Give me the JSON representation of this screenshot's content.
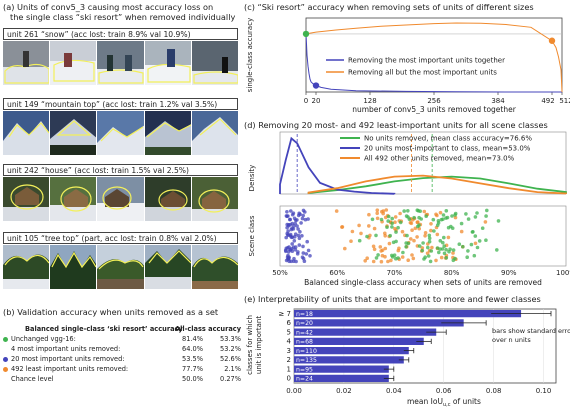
{
  "panel_a": {
    "caption_line1": "(a) Units of conv5_3 causing most accuracy loss on",
    "caption_line2": "the single class “ski resort” when removed individually",
    "units": [
      {
        "title": "unit 261 “snow” (acc lost: train 8.9% val 10.9%)"
      },
      {
        "title": "unit 149 “mountain top” (acc lost: train 1.2% val 3.5%)"
      },
      {
        "title": "unit 242 “house” (acc lost: train 1.5% val 2.5%)"
      },
      {
        "title": "unit 105 “tree top” (part, acc lost: train 0.8% val 2.0%)"
      }
    ]
  },
  "panel_b": {
    "caption": "(b) Validation accuracy when units removed as a set",
    "header_col1": "Balanced single-class ‘ski resort’ accuracy",
    "header_col2": "All-class accuracy",
    "rows": [
      {
        "label": "Unchanged vgg-16:",
        "ski": "81.4%",
        "all": "53.3%",
        "color": "#3fb34f"
      },
      {
        "label": "4 most important units removed:",
        "ski": "64.0%",
        "all": "53.2%",
        "color": ""
      },
      {
        "label": "20 most important units removed:",
        "ski": "53.5%",
        "all": "52.6%",
        "color": "#4444bb"
      },
      {
        "label": "492 least important units removed:",
        "ski": "77.7%",
        "all": "2.1%",
        "color": "#f08a2e"
      },
      {
        "label": "Chance level",
        "ski": "50.0%",
        "all": "0.27%",
        "color": ""
      }
    ]
  },
  "panel_c": {
    "caption": "(c) “Ski resort” accuracy when removing sets of units of different sizes",
    "ylabel": "single-class accuracy",
    "xlabel": "number of conv5_3 units removed together",
    "legend": [
      "Removing the most important units together",
      "Removing all but the most important units"
    ],
    "colors": {
      "most": "#4444bb",
      "allbut": "#f08a2e",
      "start": "#3fb34f"
    }
  },
  "panel_d": {
    "caption": "(d) Removing 20 most- and 492 least-important units for all scene classes",
    "density_label": "Density",
    "scene_label": "Scene class",
    "xlabel": "Balanced single-class accuracy when sets of units are removed",
    "legend": [
      {
        "text": "No units removed, mean class accuracy=76.6%",
        "color": "#3fb34f"
      },
      {
        "text": "20 units most-important to class, mean=53.0%",
        "color": "#4444bb"
      },
      {
        "text": "All 492 other units removed, mean=73.0%",
        "color": "#f08a2e"
      }
    ]
  },
  "panel_e": {
    "caption": "(e) Interpretability of units that are important to more and fewer classes",
    "ylabel_line1": "classes for which",
    "ylabel_line2": "unit is important",
    "xlabel": "mean IoU",
    "xlabel_sub": "u,c",
    "xlabel_tail": " of units",
    "note_line1": "bars show standard error",
    "note_line2": "over n units"
  },
  "chart_data": [
    {
      "type": "line",
      "title": "“Ski resort” accuracy when removing sets of units of different sizes",
      "xlabel": "number of conv5_3 units removed together",
      "ylabel": "single-class accuracy",
      "xlim": [
        0,
        512
      ],
      "xticks": [
        "0",
        "20",
        "128",
        "256",
        "384",
        "492",
        "512"
      ],
      "xtick_values": [
        0,
        20,
        128,
        256,
        384,
        492,
        512
      ],
      "ylim": [
        0.5,
        0.9
      ],
      "series": [
        {
          "name": "Removing the most important units together",
          "x": [
            0,
            1,
            2,
            4,
            6,
            8,
            10,
            14,
            20,
            30,
            50,
            100,
            200,
            300,
            400,
            492,
            512
          ],
          "y": [
            0.814,
            0.76,
            0.7,
            0.64,
            0.6,
            0.57,
            0.555,
            0.545,
            0.535,
            0.525,
            0.515,
            0.507,
            0.503,
            0.501,
            0.5,
            0.5,
            0.5
          ]
        },
        {
          "name": "Removing all but the most important units",
          "x": [
            0,
            20,
            60,
            100,
            150,
            200,
            256,
            300,
            350,
            400,
            450,
            492,
            500,
            505,
            510,
            512
          ],
          "y": [
            0.814,
            0.824,
            0.835,
            0.845,
            0.855,
            0.862,
            0.87,
            0.873,
            0.872,
            0.865,
            0.85,
            0.777,
            0.74,
            0.69,
            0.62,
            0.5
          ]
        }
      ]
    },
    {
      "type": "area",
      "title": "Removing 20 most- and 492 least-important units for all scene classes",
      "xlabel": "Balanced single-class accuracy when sets of units are removed",
      "xticks": [
        "50%",
        "60%",
        "70%",
        "80%",
        "90%",
        "100%"
      ],
      "xlim": [
        0.5,
        1.0
      ],
      "series": [
        {
          "name": "No units removed, mean class accuracy=76.6%",
          "mean": 0.766,
          "x": [
            0.55,
            0.6,
            0.65,
            0.7,
            0.75,
            0.8,
            0.85,
            0.9,
            0.95,
            1.0
          ],
          "density": [
            0.2,
            0.8,
            1.6,
            2.6,
            3.3,
            3.6,
            3.2,
            2.2,
            1.1,
            0.4
          ]
        },
        {
          "name": "20 units most-important to class, mean=53.0%",
          "mean": 0.53,
          "x": [
            0.5,
            0.51,
            0.52,
            0.53,
            0.55,
            0.57,
            0.6,
            0.63,
            0.66,
            0.7
          ],
          "density": [
            2.0,
            7.0,
            11.5,
            10.5,
            5.5,
            2.3,
            0.9,
            0.5,
            0.2,
            0.05
          ]
        },
        {
          "name": "All 492 other units removed, mean=73.0%",
          "mean": 0.73,
          "x": [
            0.55,
            0.6,
            0.65,
            0.7,
            0.75,
            0.8,
            0.85,
            0.9,
            0.95,
            1.0
          ],
          "density": [
            0.3,
            1.2,
            2.6,
            3.6,
            3.8,
            3.2,
            2.2,
            1.2,
            0.4,
            0.1
          ]
        }
      ]
    },
    {
      "type": "bar",
      "title": "Interpretability of units that are important to more and fewer classes",
      "xlabel": "mean IoU u,c of units",
      "ylabel": "classes for which unit is important",
      "categories": [
        "≥ 7",
        "6",
        "5",
        "4",
        "3",
        "2",
        "1",
        "0"
      ],
      "n_labels": [
        "n=18",
        "n=20",
        "n=42",
        "n=68",
        "n=110",
        "n=135",
        "n=95",
        "n=24"
      ],
      "values": [
        0.091,
        0.068,
        0.057,
        0.052,
        0.046,
        0.044,
        0.038,
        0.038
      ],
      "errors": [
        0.012,
        0.009,
        0.004,
        0.003,
        0.002,
        0.002,
        0.002,
        0.002
      ],
      "xlim": [
        0,
        0.105
      ],
      "xticks": [
        "0.00",
        "0.02",
        "0.04",
        "0.06",
        "0.08",
        "0.10"
      ]
    }
  ]
}
